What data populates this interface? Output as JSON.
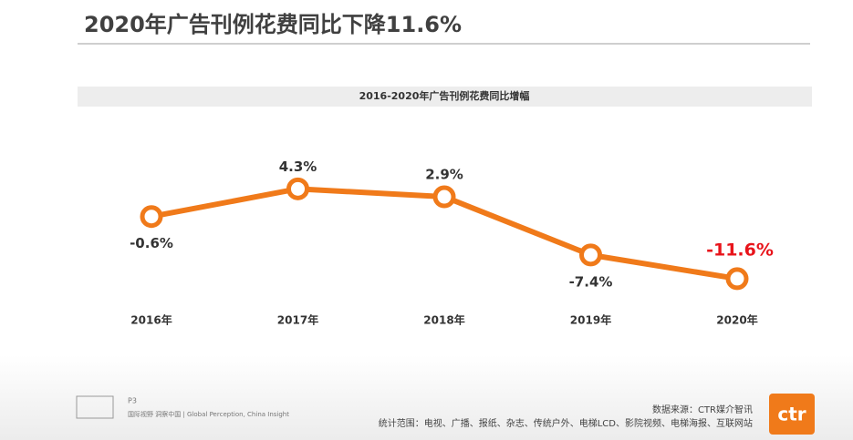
{
  "header": {
    "title": "2020年广告刊例花费同比下降11.6%"
  },
  "chart_data": {
    "type": "line",
    "title": "2016-2020年广告刊例花费同比增幅",
    "categories": [
      "2016年",
      "2017年",
      "2018年",
      "2019年",
      "2020年"
    ],
    "series": [
      {
        "name": "同比增幅",
        "color": "#f07a1a",
        "values": [
          -0.6,
          4.3,
          2.9,
          -7.4,
          -11.6
        ],
        "value_labels": [
          "-0.6%",
          "4.3%",
          "2.9%",
          "-7.4%",
          "-11.6%"
        ]
      }
    ],
    "highlight_color": "#e8141b"
  },
  "footer": {
    "page": "P3",
    "slogan": "国际视野 洞察中国 | Global Perception, China Insight",
    "source": "数据来源：CTR媒介智讯",
    "scope": "统计范围：电视、广播、报纸、杂志、传统户外、电梯LCD、影院视频、电梯海报、互联网站",
    "logo": "ctr"
  }
}
